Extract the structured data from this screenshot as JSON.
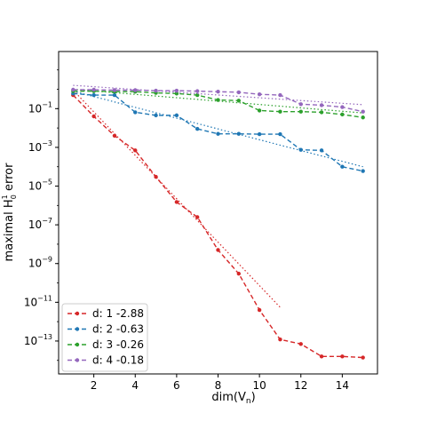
{
  "chart_data": {
    "type": "line",
    "xlabel": "dim(V",
    "xlabel_sub": "n",
    "xlabel_close": ")",
    "ylabel": "maximal H",
    "ylabel_sup": "1",
    "ylabel_sub": "0",
    "ylabel_tail": " error",
    "yscale": "log",
    "xlim": [
      0.3,
      15.7
    ],
    "ylim_exp": [
      -14.7,
      1.95
    ],
    "x_ticks": [
      2,
      4,
      6,
      8,
      10,
      12,
      14
    ],
    "y_tick_exps": [
      -13,
      -11,
      -9,
      -7,
      -5,
      -3,
      -1
    ],
    "y_tick_base": "10",
    "grid": false,
    "legend_position": "lower-left",
    "series": [
      {
        "name": "d: 1 -2.88",
        "color": "#d62728",
        "x": [
          1,
          2,
          3,
          4,
          5,
          6,
          7,
          8,
          9,
          10,
          11,
          12,
          13,
          14,
          15
        ],
        "y": [
          0.5,
          0.04,
          0.004,
          0.0007,
          3e-05,
          1.5e-06,
          2.5e-07,
          5e-09,
          3e-10,
          4e-12,
          1.2e-13,
          7e-14,
          1.6e-14,
          1.6e-14,
          1.4e-14
        ],
        "fit_x": [
          1,
          11
        ],
        "fit_y": [
          0.9,
          5.5e-12
        ]
      },
      {
        "name": "d: 2 -0.63",
        "color": "#1f77b4",
        "x": [
          1,
          2,
          3,
          4,
          5,
          6,
          7,
          8,
          9,
          10,
          11,
          12,
          13,
          14,
          15
        ],
        "y": [
          0.6,
          0.5,
          0.5,
          0.065,
          0.045,
          0.045,
          0.009,
          0.005,
          0.005,
          0.0048,
          0.0048,
          0.00075,
          0.0007,
          0.0001,
          6e-05
        ],
        "fit_x": [
          1,
          15
        ],
        "fit_y": [
          0.8,
          0.0001
        ]
      },
      {
        "name": "d: 3 -0.26",
        "color": "#2ca02c",
        "x": [
          1,
          2,
          3,
          4,
          5,
          6,
          7,
          8,
          9,
          10,
          11,
          12,
          13,
          14,
          15
        ],
        "y": [
          0.8,
          0.8,
          0.75,
          0.75,
          0.65,
          0.6,
          0.5,
          0.28,
          0.26,
          0.08,
          0.07,
          0.07,
          0.065,
          0.05,
          0.035
        ],
        "fit_x": [
          1,
          15
        ],
        "fit_y": [
          1.0,
          0.06
        ]
      },
      {
        "name": "d: 4 -0.18",
        "color": "#9467bd",
        "x": [
          1,
          2,
          3,
          4,
          5,
          6,
          7,
          8,
          9,
          10,
          11,
          12,
          13,
          14,
          15
        ],
        "y": [
          0.95,
          0.95,
          0.9,
          0.9,
          0.85,
          0.85,
          0.8,
          0.75,
          0.7,
          0.55,
          0.5,
          0.17,
          0.15,
          0.12,
          0.07
        ],
        "fit_x": [
          1,
          15
        ],
        "fit_y": [
          1.6,
          0.16
        ]
      }
    ]
  }
}
